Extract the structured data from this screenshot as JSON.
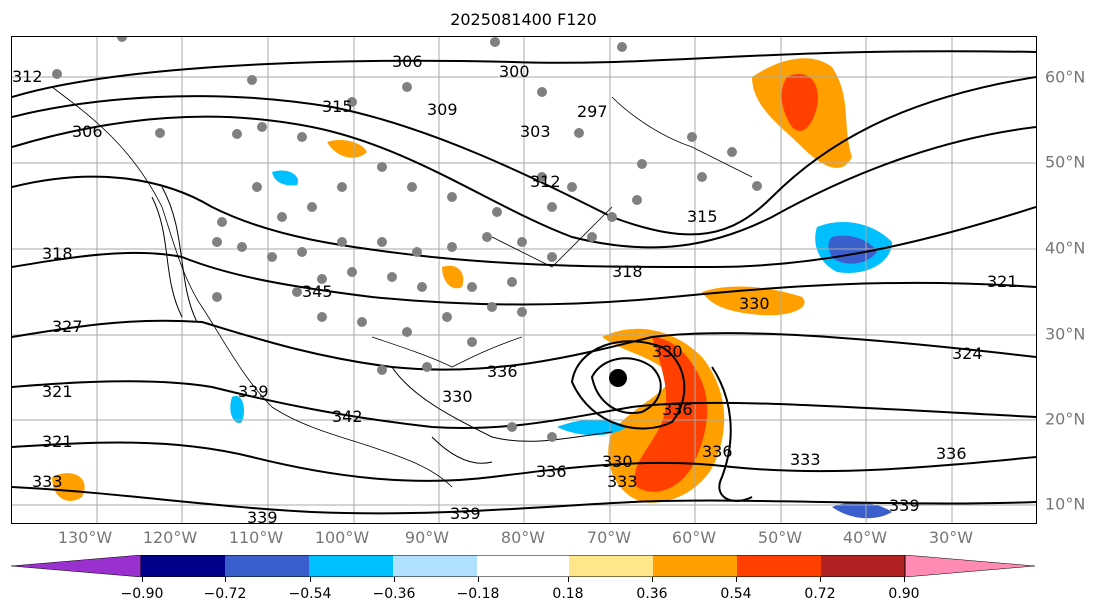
{
  "title": "2025081400 F120",
  "lon_labels": [
    "130°W",
    "120°W",
    "110°W",
    "100°W",
    "90°W",
    "80°W",
    "70°W",
    "60°W",
    "50°W",
    "40°W",
    "30°W"
  ],
  "lat_labels": [
    "60°N",
    "50°N",
    "40°N",
    "30°N",
    "20°N",
    "10°N"
  ],
  "contour_labels": [
    "312",
    "315",
    "306",
    "318",
    "327",
    "321",
    "321",
    "333",
    "339",
    "339",
    "306",
    "309",
    "300",
    "303",
    "297",
    "312",
    "315",
    "318",
    "330",
    "324",
    "321",
    "330",
    "336",
    "330",
    "333",
    "339",
    "336",
    "336",
    "336",
    "333",
    "336",
    "339",
    "342",
    "345",
    "330"
  ],
  "colorbar": {
    "ticks": [
      "−0.90",
      "−0.72",
      "−0.54",
      "−0.36",
      "−0.18",
      "0.18",
      "0.36",
      "0.54",
      "0.72",
      "0.90"
    ],
    "colors": [
      "#9b30d0",
      "#00008b",
      "#3a5fcd",
      "#00bfff",
      "#b0e0ff",
      "#ffffff",
      "#ffe68a",
      "#ffa000",
      "#ff4000",
      "#b22222",
      "#ff8ab4"
    ]
  },
  "legend_colors": {
    "contour": "#000000",
    "grid": "#aaaaaa",
    "station_dot": "#808080",
    "storm_center": "#000000"
  }
}
